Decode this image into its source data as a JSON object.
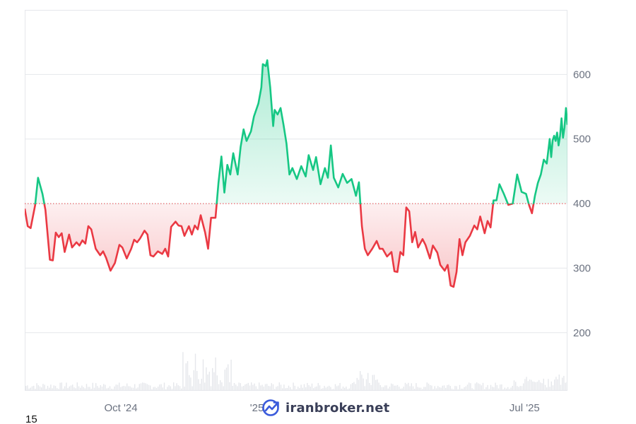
{
  "page_number": "15",
  "watermark": {
    "text": "iranbroker.net",
    "icon": "chart-growth-logo-icon"
  },
  "colors": {
    "up": "#16c784",
    "down": "#ea3943",
    "grid": "#e5e7eb",
    "baseline": "#ea3943",
    "volume": "#e5e7eb",
    "tick_text": "#6b7280"
  },
  "chart_data": {
    "type": "area",
    "baseline": 400,
    "ylim": [
      110,
      700
    ],
    "y_ticks": [
      {
        "value": 200,
        "label": "200"
      },
      {
        "value": 300,
        "label": "300"
      },
      {
        "value": 400,
        "label": "400"
      },
      {
        "value": 500,
        "label": "500"
      },
      {
        "value": 600,
        "label": "600"
      }
    ],
    "x_ticks": [
      {
        "date": "2024-10-01",
        "label": "Oct '24"
      },
      {
        "date": "2025-01-01",
        "label": "'25"
      },
      {
        "date": "2025-07-01",
        "label": "Jul '25"
      }
    ],
    "x_range": [
      "2024-07-28",
      "2025-07-30"
    ],
    "grid": true,
    "legend": "none",
    "series": [
      {
        "values": [
          [
            "2024-07-28",
            392
          ],
          [
            "2024-07-30",
            365
          ],
          [
            "2024-08-01",
            362
          ],
          [
            "2024-08-04",
            397
          ],
          [
            "2024-08-06",
            440
          ],
          [
            "2024-08-09",
            415
          ],
          [
            "2024-08-11",
            390
          ],
          [
            "2024-08-14",
            313
          ],
          [
            "2024-08-16",
            312
          ],
          [
            "2024-08-18",
            355
          ],
          [
            "2024-08-20",
            348
          ],
          [
            "2024-08-22",
            354
          ],
          [
            "2024-08-24",
            325
          ],
          [
            "2024-08-27",
            352
          ],
          [
            "2024-08-29",
            332
          ],
          [
            "2024-09-01",
            340
          ],
          [
            "2024-09-03",
            335
          ],
          [
            "2024-09-05",
            343
          ],
          [
            "2024-09-07",
            338
          ],
          [
            "2024-09-09",
            365
          ],
          [
            "2024-09-11",
            360
          ],
          [
            "2024-09-14",
            330
          ],
          [
            "2024-09-17",
            320
          ],
          [
            "2024-09-19",
            326
          ],
          [
            "2024-09-21",
            316
          ],
          [
            "2024-09-24",
            296
          ],
          [
            "2024-09-27",
            308
          ],
          [
            "2024-09-30",
            336
          ],
          [
            "2024-10-02",
            332
          ],
          [
            "2024-10-05",
            315
          ],
          [
            "2024-10-08",
            330
          ],
          [
            "2024-10-10",
            344
          ],
          [
            "2024-10-12",
            340
          ],
          [
            "2024-10-14",
            346
          ],
          [
            "2024-10-17",
            358
          ],
          [
            "2024-10-19",
            352
          ],
          [
            "2024-10-21",
            320
          ],
          [
            "2024-10-23",
            318
          ],
          [
            "2024-10-26",
            326
          ],
          [
            "2024-10-29",
            322
          ],
          [
            "2024-10-31",
            330
          ],
          [
            "2024-11-02",
            318
          ],
          [
            "2024-11-04",
            364
          ],
          [
            "2024-11-07",
            372
          ],
          [
            "2024-11-09",
            366
          ],
          [
            "2024-11-11",
            365
          ],
          [
            "2024-11-13",
            350
          ],
          [
            "2024-11-16",
            365
          ],
          [
            "2024-11-18",
            352
          ],
          [
            "2024-11-20",
            366
          ],
          [
            "2024-11-22",
            360
          ],
          [
            "2024-11-24",
            382
          ],
          [
            "2024-11-27",
            355
          ],
          [
            "2024-11-29",
            330
          ],
          [
            "2024-12-01",
            378
          ],
          [
            "2024-12-04",
            378
          ],
          [
            "2024-12-06",
            432
          ],
          [
            "2024-12-08",
            473
          ],
          [
            "2024-12-10",
            417
          ],
          [
            "2024-12-12",
            460
          ],
          [
            "2024-12-14",
            445
          ],
          [
            "2024-12-16",
            478
          ],
          [
            "2024-12-19",
            445
          ],
          [
            "2024-12-21",
            488
          ],
          [
            "2024-12-23",
            515
          ],
          [
            "2024-12-25",
            497
          ],
          [
            "2024-12-28",
            512
          ],
          [
            "2024-12-30",
            535
          ],
          [
            "2025-01-02",
            555
          ],
          [
            "2025-01-04",
            580
          ],
          [
            "2025-01-05",
            616
          ],
          [
            "2025-01-07",
            613
          ],
          [
            "2025-01-08",
            622
          ],
          [
            "2025-01-10",
            580
          ],
          [
            "2025-01-12",
            520
          ],
          [
            "2025-01-13",
            545
          ],
          [
            "2025-01-15",
            538
          ],
          [
            "2025-01-17",
            548
          ],
          [
            "2025-01-19",
            522
          ],
          [
            "2025-01-21",
            493
          ],
          [
            "2025-01-23",
            445
          ],
          [
            "2025-01-25",
            455
          ],
          [
            "2025-01-28",
            438
          ],
          [
            "2025-01-31",
            458
          ],
          [
            "2025-02-03",
            442
          ],
          [
            "2025-02-05",
            475
          ],
          [
            "2025-02-08",
            452
          ],
          [
            "2025-02-10",
            472
          ],
          [
            "2025-02-13",
            430
          ],
          [
            "2025-02-16",
            455
          ],
          [
            "2025-02-18",
            440
          ],
          [
            "2025-02-20",
            490
          ],
          [
            "2025-02-22",
            440
          ],
          [
            "2025-02-25",
            425
          ],
          [
            "2025-02-28",
            446
          ],
          [
            "2025-03-03",
            432
          ],
          [
            "2025-03-06",
            438
          ],
          [
            "2025-03-09",
            412
          ],
          [
            "2025-03-11",
            433
          ],
          [
            "2025-03-13",
            365
          ],
          [
            "2025-03-15",
            330
          ],
          [
            "2025-03-17",
            320
          ],
          [
            "2025-03-20",
            330
          ],
          [
            "2025-03-23",
            342
          ],
          [
            "2025-03-25",
            330
          ],
          [
            "2025-03-27",
            330
          ],
          [
            "2025-03-30",
            318
          ],
          [
            "2025-04-02",
            325
          ],
          [
            "2025-04-04",
            295
          ],
          [
            "2025-04-06",
            294
          ],
          [
            "2025-04-08",
            325
          ],
          [
            "2025-04-10",
            320
          ],
          [
            "2025-04-12",
            394
          ],
          [
            "2025-04-14",
            388
          ],
          [
            "2025-04-16",
            340
          ],
          [
            "2025-04-18",
            356
          ],
          [
            "2025-04-20",
            332
          ],
          [
            "2025-04-23",
            345
          ],
          [
            "2025-04-25",
            336
          ],
          [
            "2025-04-28",
            315
          ],
          [
            "2025-04-30",
            335
          ],
          [
            "2025-05-03",
            324
          ],
          [
            "2025-05-05",
            305
          ],
          [
            "2025-05-08",
            296
          ],
          [
            "2025-05-10",
            305
          ],
          [
            "2025-05-12",
            273
          ],
          [
            "2025-05-14",
            271
          ],
          [
            "2025-05-16",
            294
          ],
          [
            "2025-05-18",
            345
          ],
          [
            "2025-05-20",
            320
          ],
          [
            "2025-05-22",
            340
          ],
          [
            "2025-05-25",
            350
          ],
          [
            "2025-05-28",
            366
          ],
          [
            "2025-05-30",
            360
          ],
          [
            "2025-06-01",
            380
          ],
          [
            "2025-06-04",
            354
          ],
          [
            "2025-06-06",
            373
          ],
          [
            "2025-06-08",
            363
          ],
          [
            "2025-06-10",
            405
          ],
          [
            "2025-06-12",
            405
          ],
          [
            "2025-06-14",
            430
          ],
          [
            "2025-06-17",
            415
          ],
          [
            "2025-06-20",
            398
          ],
          [
            "2025-06-23",
            400
          ],
          [
            "2025-06-26",
            445
          ],
          [
            "2025-06-29",
            418
          ],
          [
            "2025-07-02",
            415
          ],
          [
            "2025-07-04",
            398
          ],
          [
            "2025-07-06",
            385
          ],
          [
            "2025-07-08",
            412
          ],
          [
            "2025-07-10",
            432
          ],
          [
            "2025-07-12",
            445
          ],
          [
            "2025-07-14",
            468
          ],
          [
            "2025-07-16",
            462
          ],
          [
            "2025-07-18",
            500
          ],
          [
            "2025-07-19",
            472
          ],
          [
            "2025-07-20",
            498
          ],
          [
            "2025-07-21",
            505
          ],
          [
            "2025-07-22",
            497
          ],
          [
            "2025-07-23",
            510
          ],
          [
            "2025-07-24",
            490
          ],
          [
            "2025-07-25",
            505
          ],
          [
            "2025-07-26",
            532
          ],
          [
            "2025-07-27",
            502
          ],
          [
            "2025-07-28",
            518
          ],
          [
            "2025-07-29",
            548
          ],
          [
            "2025-07-30",
            522
          ]
        ]
      }
    ]
  }
}
